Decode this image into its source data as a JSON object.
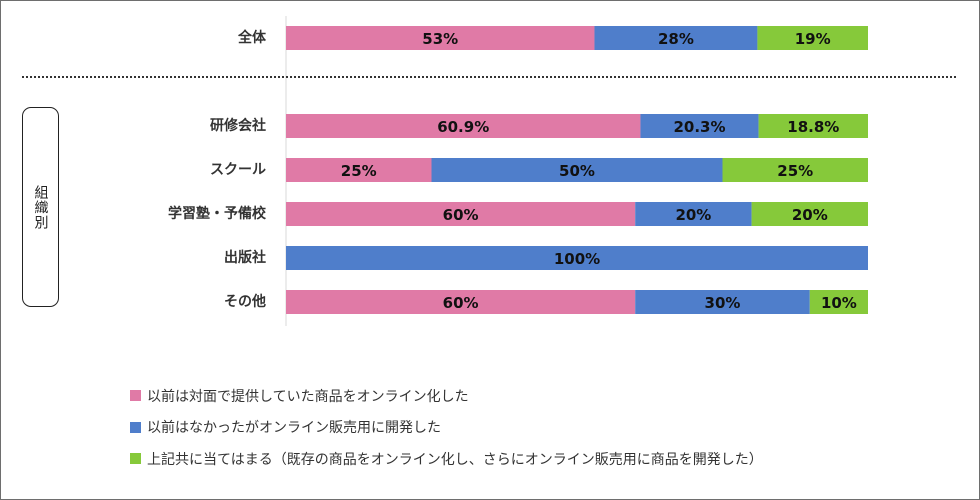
{
  "chart_data": {
    "type": "bar",
    "orientation": "horizontal",
    "stacked": true,
    "normalized": true,
    "categories": [
      "全体",
      "研修会社",
      "スクール",
      "学習塾・予備校",
      "出版社",
      "その他"
    ],
    "series": [
      {
        "name": "以前は対面で提供していた商品をオンライン化した",
        "color": "#e07aa6",
        "values": [
          53,
          60.9,
          25,
          60,
          0,
          60
        ],
        "labels": [
          "53%",
          "60.9%",
          "25%",
          "60%",
          "",
          "60%"
        ]
      },
      {
        "name": "以前はなかったがオンライン販売用に開発した",
        "color": "#4f7ecb",
        "values": [
          28,
          20.3,
          50,
          20,
          100,
          30
        ],
        "labels": [
          "28%",
          "20.3%",
          "50%",
          "20%",
          "100%",
          "30%"
        ]
      },
      {
        "name": "上記共に当てはまる（既存の商品をオンライン化し、さらにオンライン販売用に商品を開発した）",
        "color": "#86c93a",
        "values": [
          19,
          18.8,
          25,
          20,
          0,
          10
        ],
        "labels": [
          "19%",
          "18.8%",
          "25%",
          "20%",
          "",
          "10%"
        ]
      }
    ],
    "xlim": [
      0,
      100
    ],
    "group_label": "組織別",
    "legend_position": "bottom-left",
    "grid": false
  }
}
